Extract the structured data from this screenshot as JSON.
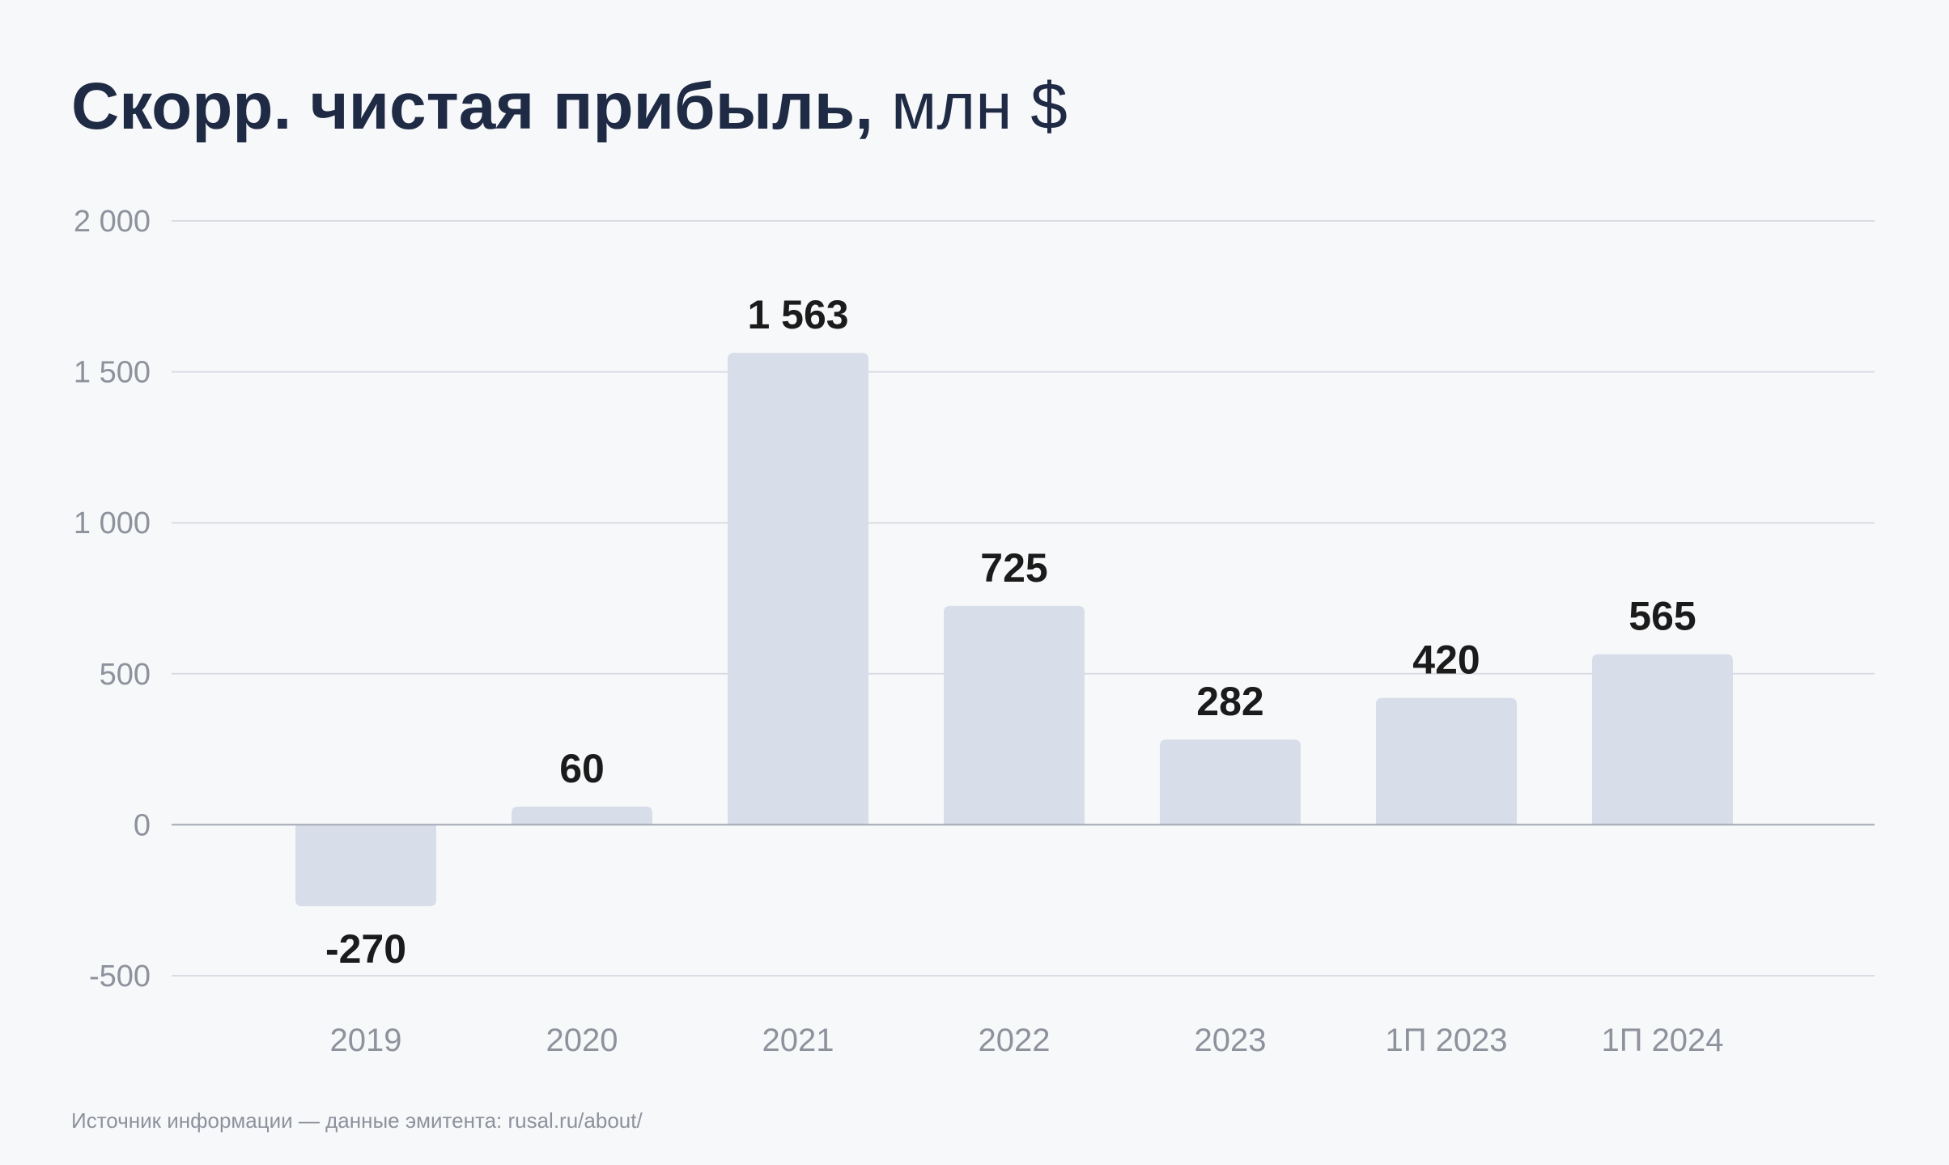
{
  "title": {
    "main": "Скорр. чистая прибыль,",
    "unit": "млн $"
  },
  "source": "Источник информации — данные эмитента: rusal.ru/about/",
  "chart_data": {
    "type": "bar",
    "categories": [
      "2019",
      "2020",
      "2021",
      "2022",
      "2023",
      "1П 2023",
      "1П 2024"
    ],
    "values": [
      -270,
      60,
      1563,
      725,
      282,
      420,
      565
    ],
    "data_labels": [
      "-270",
      "60",
      "1 563",
      "725",
      "282",
      "420",
      "565"
    ],
    "ylim": [
      -500,
      2000
    ],
    "yticks": [
      -500,
      0,
      500,
      1000,
      1500,
      2000
    ],
    "ytick_labels": [
      "-500",
      "0",
      "500",
      "1 000",
      "1 500",
      "2 000"
    ],
    "grid": true,
    "bar_color": "#d8dee9",
    "grid_color": "#d9dce2",
    "zero_line_color": "#a3a8b3",
    "tick_color": "#8e929c",
    "label_color": "#1b1b1b"
  }
}
